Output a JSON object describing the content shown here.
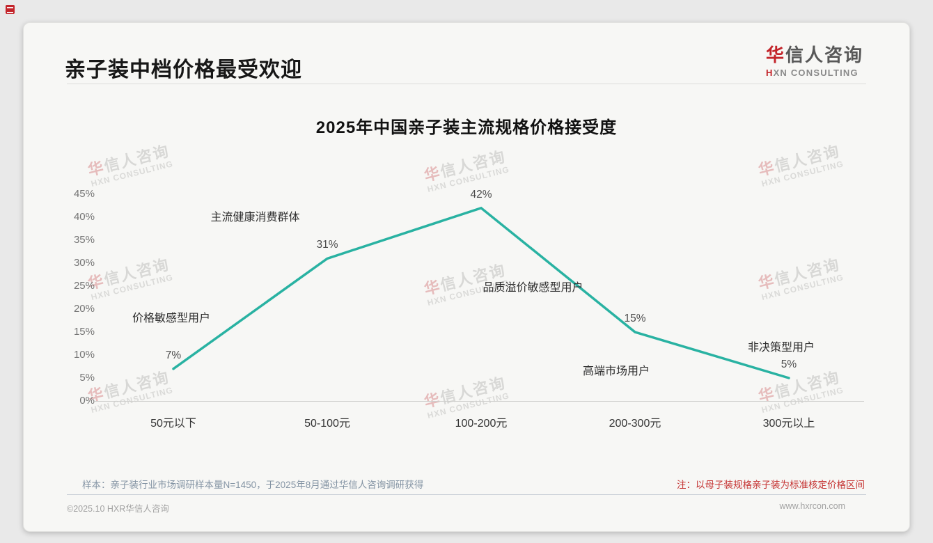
{
  "page": {
    "slide_title": "亲子装中档价格最受欢迎",
    "logo": {
      "zh_first": "华",
      "zh_rest": "信人咨询",
      "en_first": "H",
      "en_rest": "XN CONSULTING"
    },
    "watermark": {
      "zh_first": "华",
      "zh_rest": "信人咨询",
      "en": "HXN CONSULTING"
    },
    "footer": {
      "sample_note": "样本：亲子装行业市场调研样本量N=1450，于2025年8月通过华信人咨询调研获得",
      "price_note": "注：以母子装规格亲子装为标准核定价格区间",
      "copyright": "©2025.10 HXR华信人咨询",
      "website": "www.hxrcon.com"
    }
  },
  "chart_data": {
    "type": "line",
    "title": "2025年中国亲子装主流规格价格接受度",
    "categories": [
      "50元以下",
      "50-100元",
      "100-200元",
      "200-300元",
      "300元以上"
    ],
    "values": [
      7,
      31,
      42,
      15,
      5
    ],
    "value_labels": [
      "7%",
      "31%",
      "42%",
      "15%",
      "5%"
    ],
    "annotations": [
      "价格敏感型用户",
      "主流健康消费群体",
      "品质溢价敏感型用户",
      "高端市场用户",
      "非决策型用户"
    ],
    "yticks": [
      "45%",
      "40%",
      "35%",
      "30%",
      "25%",
      "20%",
      "15%",
      "10%",
      "5%",
      "0%"
    ],
    "ylim": [
      0,
      45
    ],
    "ytick_step": 5,
    "xlabel": "",
    "ylabel": "",
    "grid": false,
    "legend": false,
    "line_color": "#29B2A2"
  }
}
